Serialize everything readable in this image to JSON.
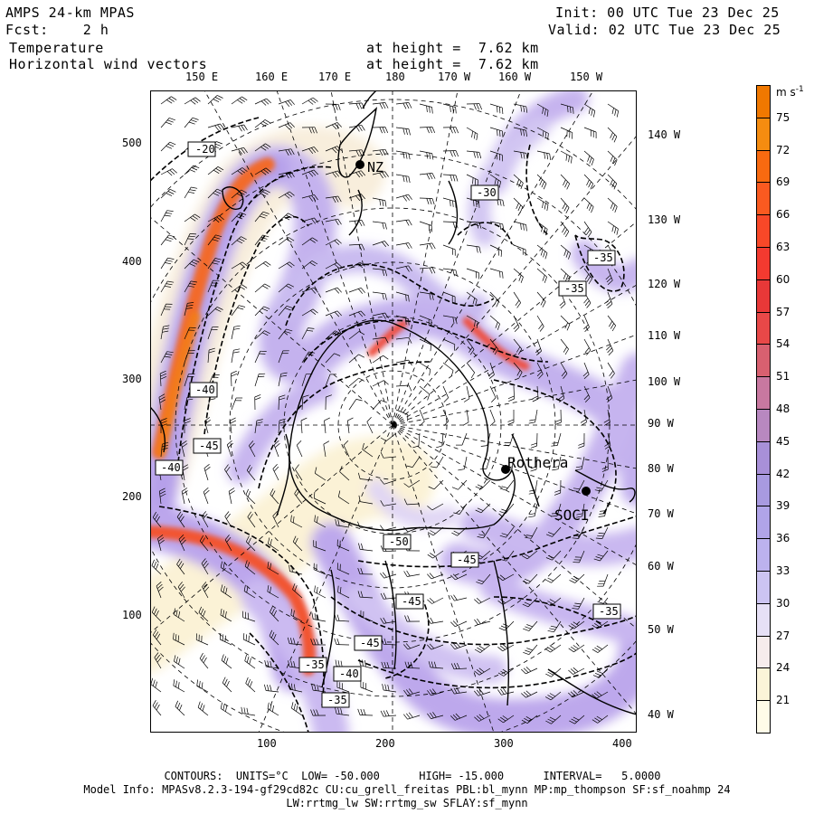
{
  "header": {
    "model": "AMPS 24-km MPAS",
    "fcst": "Fcst:    2 h",
    "var1": "Temperature",
    "var2": "Horizontal wind vectors",
    "height1": "at height =  7.62 km",
    "height2": "at height =  7.62 km",
    "init": "Init: 00 UTC Tue 23 Dec 25",
    "valid": "Valid: 02 UTC Tue 23 Dec 25"
  },
  "top_lon_labels": [
    "150 E",
    "160 E",
    "170 E",
    "180",
    "170 W",
    "160 W",
    "150 W"
  ],
  "right_lon_labels": [
    "140 W",
    "130 W",
    "120 W",
    "110 W",
    "100 W",
    "90 W",
    "80 W",
    "70 W",
    "60 W",
    "50 W",
    "40 W"
  ],
  "x_ticks": [
    "100",
    "200",
    "300",
    "400"
  ],
  "y_ticks": [
    "500",
    "400",
    "300",
    "200",
    "100"
  ],
  "contour_labels": [
    "-20",
    "-30",
    "-35",
    "-35",
    "-40",
    "-45",
    "-40",
    "-50",
    "-45",
    "-45",
    "-45",
    "-35",
    "-40",
    "-35",
    "-35"
  ],
  "place_labels": [
    "NZ",
    "Rothera",
    "SOCI"
  ],
  "colorbar": {
    "unit": "m s",
    "unit_exp": "-1",
    "labels": [
      "75",
      "72",
      "69",
      "66",
      "63",
      "60",
      "57",
      "54",
      "51",
      "48",
      "45",
      "42",
      "39",
      "36",
      "33",
      "30",
      "27",
      "24",
      "21"
    ],
    "colors": [
      "#f07800",
      "#f58c10",
      "#f86a10",
      "#fa5a20",
      "#f84828",
      "#f33a30",
      "#e83838",
      "#e84848",
      "#d86070",
      "#c878a0",
      "#b888c0",
      "#a890d8",
      "#a89ae0",
      "#b0a4e8",
      "#bcb2ee",
      "#ccc4f2",
      "#e6e0f6",
      "#f6ecec",
      "#fbf4d8",
      "#fffce8"
    ]
  },
  "footer": {
    "contours": "CONTOURS:  UNITS=°C  LOW= -50.000      HIGH= -15.000      INTERVAL=   5.0000",
    "model_info1": "Model Info: MPASv8.2.3-194-gf29cd82c CU:cu_grell_freitas PBL:bl_mynn MP:mp_thompson SF:sf_noahmp 24",
    "model_info2": "LW:rrtmg_lw SW:rrtmg_sw SFLAY:sf_mynn"
  }
}
